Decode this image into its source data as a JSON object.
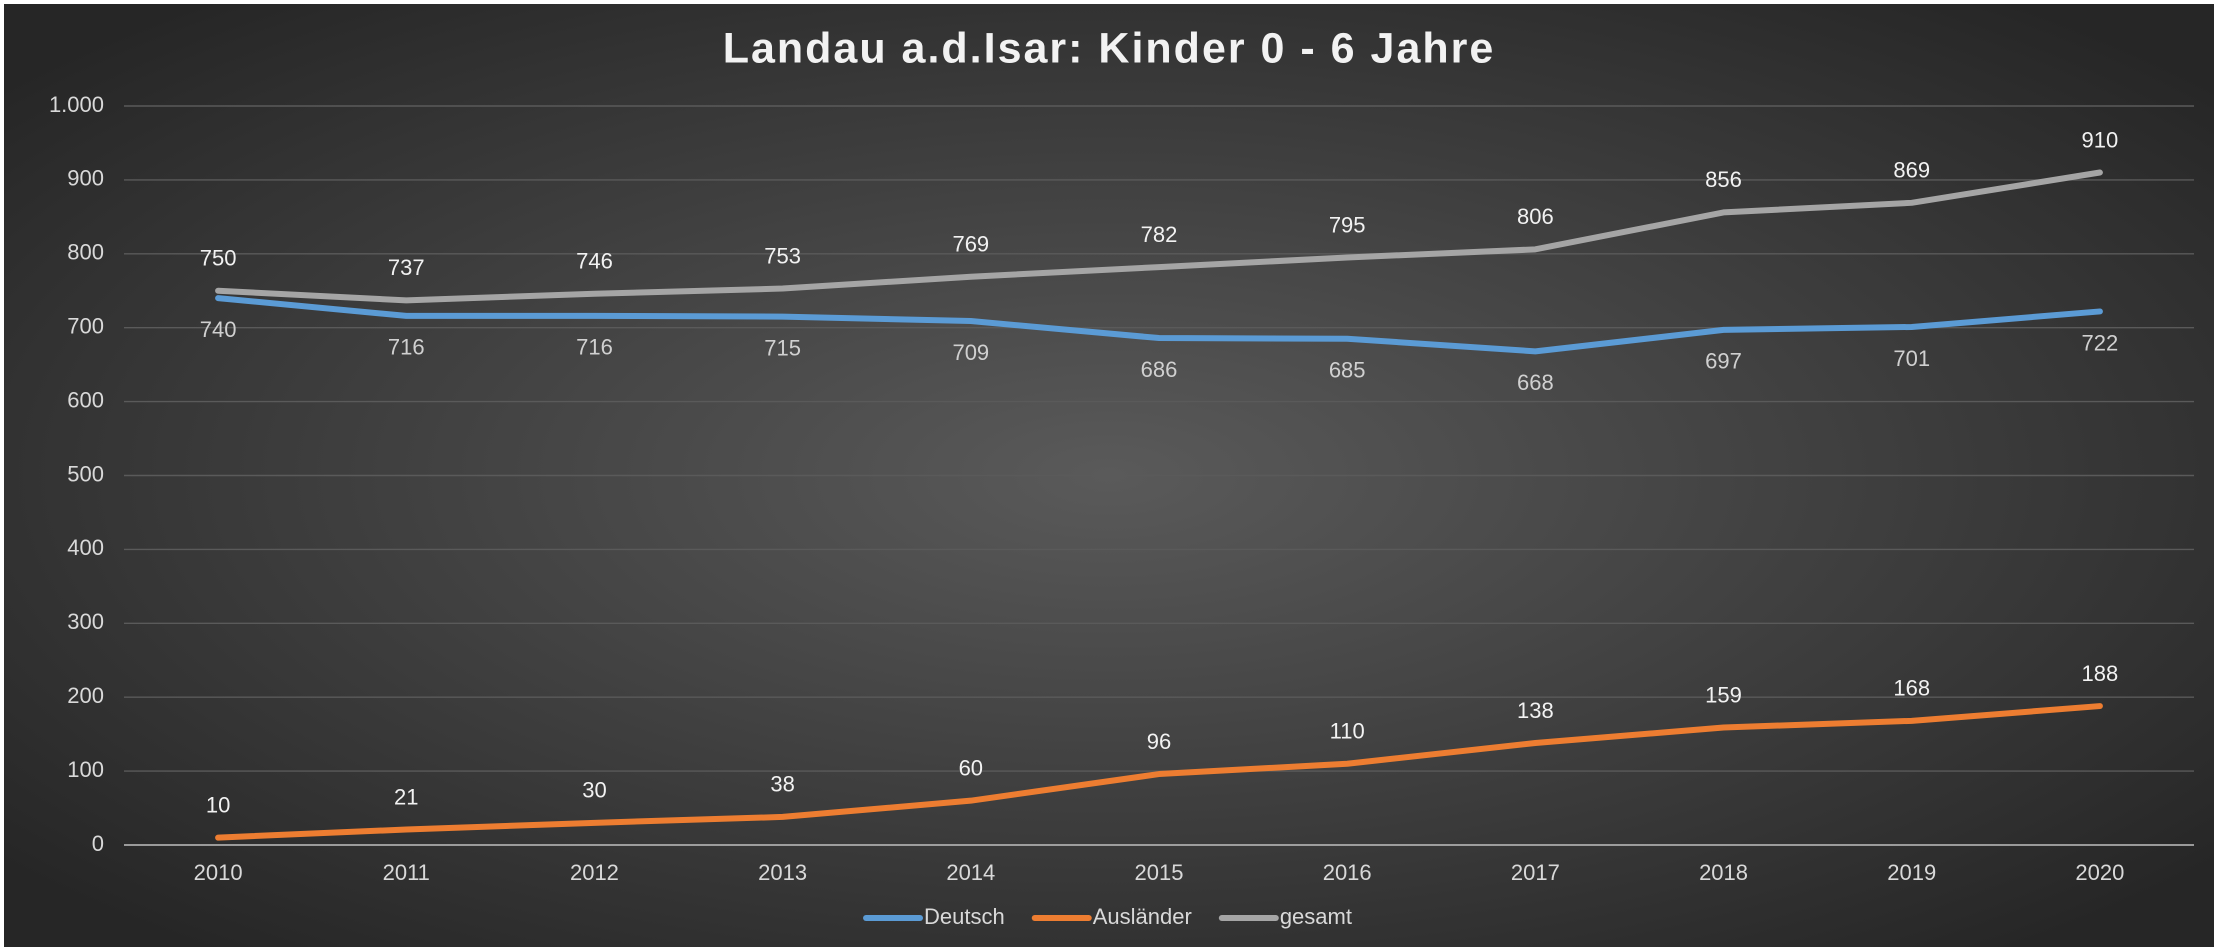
{
  "chart_data": {
    "type": "line",
    "title": "Landau a.d.Isar: Kinder 0 - 6 Jahre",
    "categories": [
      "2010",
      "2011",
      "2012",
      "2013",
      "2014",
      "2015",
      "2016",
      "2017",
      "2018",
      "2019",
      "2020"
    ],
    "series": [
      {
        "name": "Deutsch",
        "color": "#5b9bd5",
        "values": [
          740,
          716,
          716,
          715,
          709,
          686,
          685,
          668,
          697,
          701,
          722
        ]
      },
      {
        "name": "Ausländer",
        "color": "#ed7d31",
        "values": [
          10,
          21,
          30,
          38,
          60,
          96,
          110,
          138,
          159,
          168,
          188
        ]
      },
      {
        "name": "gesamt",
        "color": "#a5a5a5",
        "values": [
          750,
          737,
          746,
          753,
          769,
          782,
          795,
          806,
          856,
          869,
          910
        ]
      }
    ],
    "ylim": [
      0,
      1000
    ],
    "yticks": [
      0,
      100,
      200,
      300,
      400,
      500,
      600,
      700,
      800,
      900,
      {
        "value": 1000,
        "label": "1.000"
      }
    ],
    "grid": true,
    "legend": "bottom"
  }
}
